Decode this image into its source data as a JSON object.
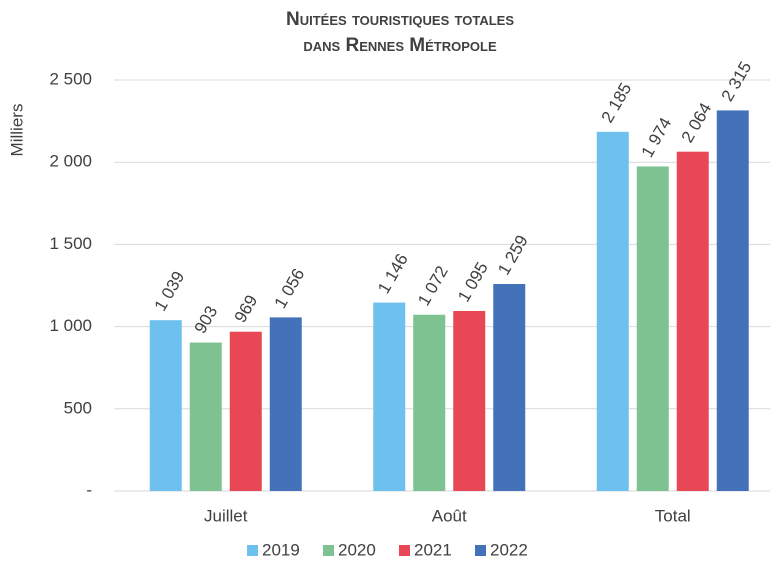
{
  "chart_data": {
    "type": "bar",
    "title": [
      "Nuitées touristiques totales",
      "dans Rennes Métropole"
    ],
    "y_label": "Milliers",
    "categories": [
      "Juillet",
      "Août",
      "Total"
    ],
    "series": [
      {
        "name": "2019",
        "color": "#6ec1ee",
        "values": [
          1039,
          1146,
          2185
        ],
        "value_labels": [
          "1 039",
          "1 146",
          "2 185"
        ]
      },
      {
        "name": "2020",
        "color": "#7dc290",
        "values": [
          903,
          1072,
          1974
        ],
        "value_labels": [
          "903",
          "1 072",
          "1 974"
        ]
      },
      {
        "name": "2021",
        "color": "#e84855",
        "values": [
          969,
          1095,
          2064
        ],
        "value_labels": [
          "969",
          "1 095",
          "2 064"
        ]
      },
      {
        "name": "2022",
        "color": "#4472b8",
        "values": [
          1056,
          1259,
          2315
        ],
        "value_labels": [
          "1 056",
          "1 259",
          "2 315"
        ]
      }
    ],
    "ylim": [
      0,
      2500
    ],
    "yticks": [
      {
        "value": 0,
        "label": "-"
      },
      500,
      {
        "value": 1000,
        "label": "1 000"
      },
      {
        "value": 1500,
        "label": "1 500"
      },
      {
        "value": 2000,
        "label": "2 000"
      },
      {
        "value": 2500,
        "label": "2 500"
      }
    ],
    "grid": true,
    "legend": "bottom"
  }
}
